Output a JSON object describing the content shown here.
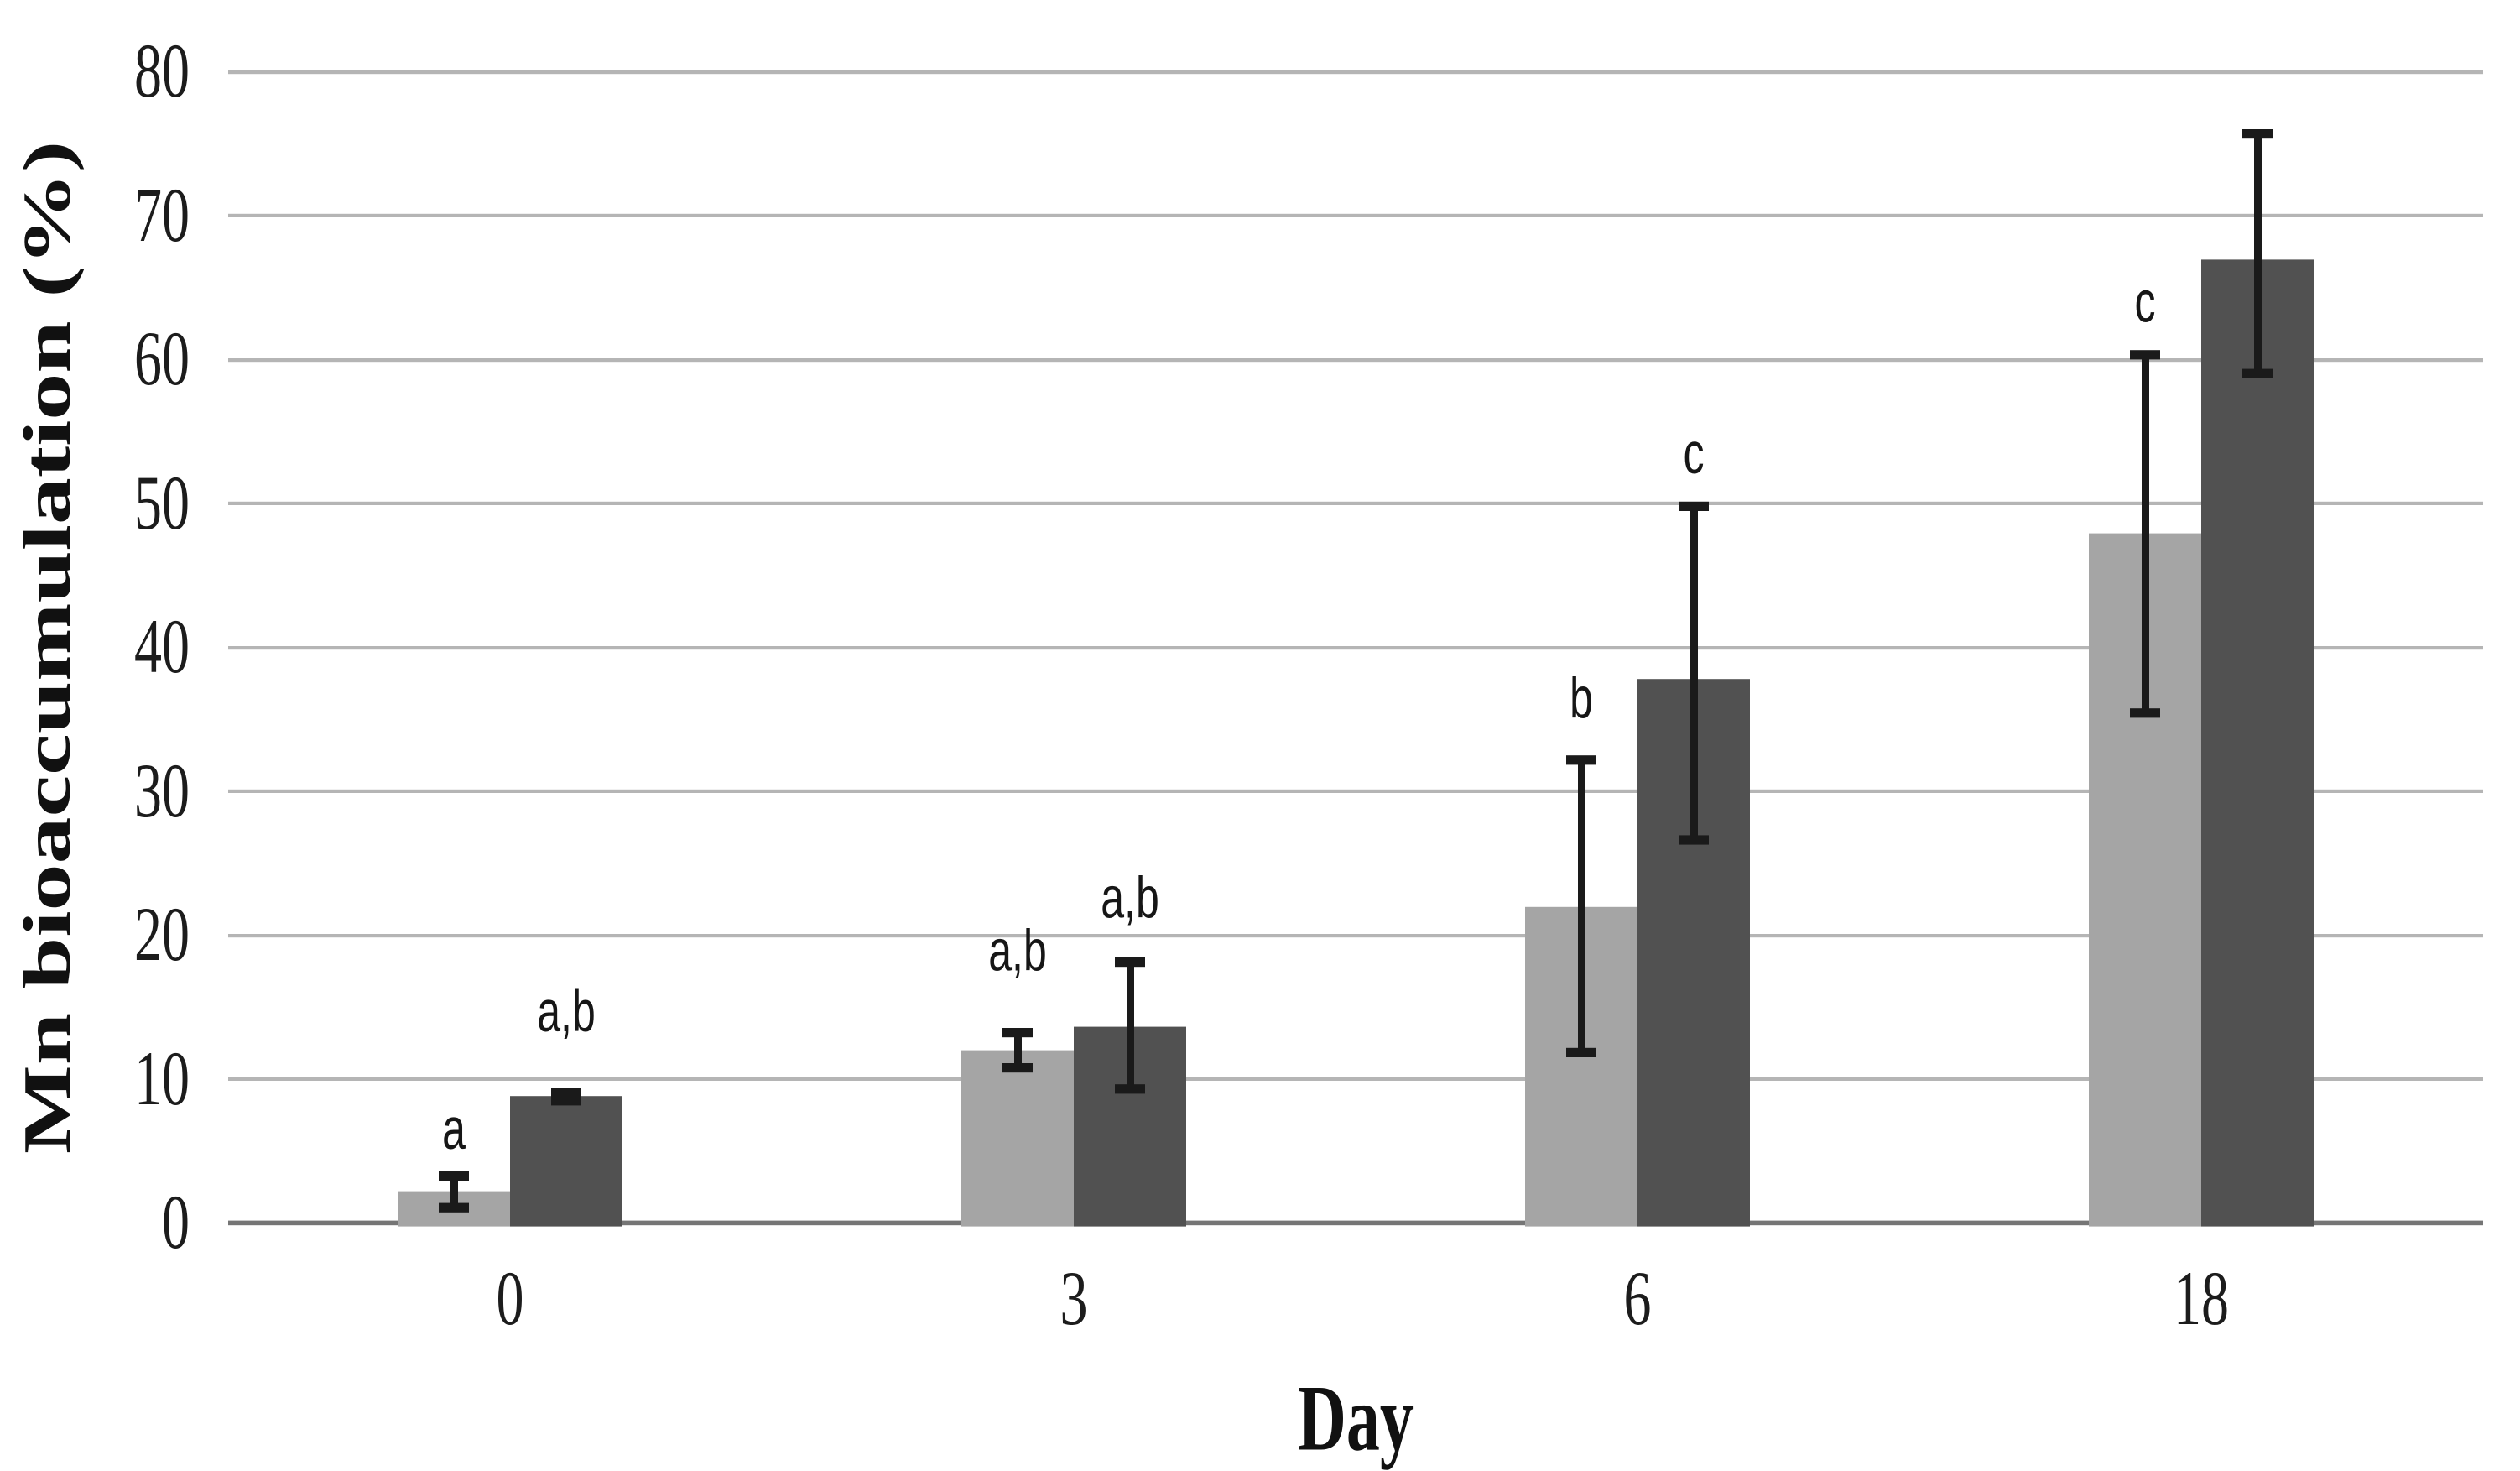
{
  "chart_data": {
    "type": "bar",
    "title": "",
    "xlabel": "Day",
    "ylabel": "Mn bioaccumulation (%)",
    "categories": [
      "0",
      "3",
      "6",
      "18"
    ],
    "ylim": [
      0,
      80
    ],
    "yticks": [
      0,
      10,
      20,
      30,
      40,
      50,
      60,
      70,
      80
    ],
    "grid": "horizontal-only",
    "legend": "none",
    "series": [
      {
        "name": "light-gray-bars",
        "color": "#a5a5a5",
        "values": [
          2.2,
          12.0,
          22.0,
          47.9
        ],
        "error_low": [
          1.1,
          10.8,
          11.8,
          35.4
        ],
        "error_high": [
          3.3,
          13.2,
          32.2,
          60.3
        ]
      },
      {
        "name": "dark-gray-bars",
        "color": "#515151",
        "values": [
          8.8,
          13.6,
          37.8,
          66.9
        ],
        "error_low": [
          8.5,
          9.3,
          26.6,
          59.0
        ],
        "error_high": [
          9.1,
          18.1,
          49.8,
          75.7
        ]
      }
    ],
    "annotations": [
      {
        "series": 0,
        "category": 0,
        "text": "a",
        "y": 6.5
      },
      {
        "series": 1,
        "category": 0,
        "text": "a,b",
        "y": 14.7
      },
      {
        "series": 0,
        "category": 1,
        "text": "a,b",
        "y": 18.9
      },
      {
        "series": 1,
        "category": 1,
        "text": "a,b",
        "y": 22.6
      },
      {
        "series": 0,
        "category": 2,
        "text": "b",
        "y": 36.5
      },
      {
        "series": 1,
        "category": 2,
        "text": "c",
        "y": 53.5
      },
      {
        "series": 0,
        "category": 3,
        "text": "c",
        "y": 64.0
      }
    ]
  },
  "colors": {
    "background": "#ffffff",
    "gridline": "#b5b5b5",
    "axis_line": "#757575",
    "error_bar": "#1a1a1a",
    "tick_text": "#1c1c1c",
    "title_text": "#111111"
  }
}
